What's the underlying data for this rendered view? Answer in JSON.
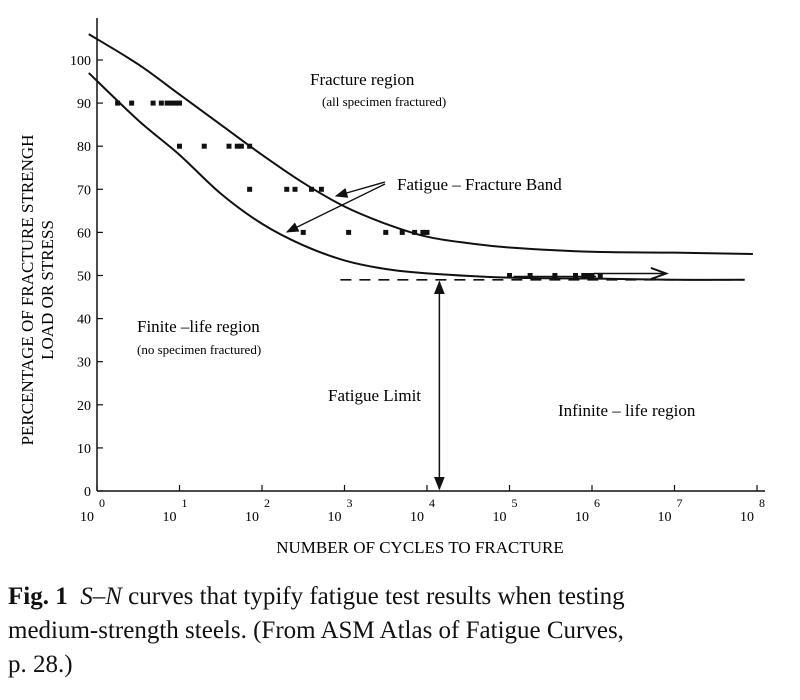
{
  "chart_data": {
    "type": "scatter",
    "xscale": "log",
    "xlim": [
      0,
      8
    ],
    "ylim": [
      0,
      100
    ],
    "xlabel": "NUMBER OF CYCLES TO FRACTURE",
    "ylabel_line1": "PERCENTAGE OF FRACTURE STRENGH",
    "ylabel_line2": "LOAD OR STRESS",
    "x_ticks": [
      {
        "base": "10",
        "exp": "0"
      },
      {
        "base": "10",
        "exp": "1"
      },
      {
        "base": "10",
        "exp": "2"
      },
      {
        "base": "10",
        "exp": "3"
      },
      {
        "base": "10",
        "exp": "4"
      },
      {
        "base": "10",
        "exp": "5"
      },
      {
        "base": "10",
        "exp": "6"
      },
      {
        "base": "10",
        "exp": "7"
      },
      {
        "base": "10",
        "exp": "8"
      }
    ],
    "y_ticks": [
      "0",
      "10",
      "20",
      "30",
      "40",
      "50",
      "60",
      "70",
      "80",
      "90",
      "100"
    ],
    "points": [
      [
        0.25,
        90
      ],
      [
        0.42,
        90
      ],
      [
        0.68,
        90
      ],
      [
        0.78,
        90
      ],
      [
        0.85,
        90
      ],
      [
        0.9,
        90
      ],
      [
        0.95,
        90
      ],
      [
        1.0,
        90
      ],
      [
        1.0,
        80
      ],
      [
        1.3,
        80
      ],
      [
        1.6,
        80
      ],
      [
        1.7,
        80
      ],
      [
        1.75,
        80
      ],
      [
        1.85,
        80
      ],
      [
        1.85,
        70
      ],
      [
        2.3,
        70
      ],
      [
        2.4,
        70
      ],
      [
        2.6,
        70
      ],
      [
        2.72,
        70
      ],
      [
        2.5,
        60
      ],
      [
        3.05,
        60
      ],
      [
        3.5,
        60
      ],
      [
        3.7,
        60
      ],
      [
        3.85,
        60
      ],
      [
        3.95,
        60
      ],
      [
        4.0,
        60
      ],
      [
        5.0,
        50
      ],
      [
        5.25,
        50
      ],
      [
        5.55,
        50
      ],
      [
        5.8,
        50
      ],
      [
        5.9,
        50
      ],
      [
        5.95,
        50
      ],
      [
        6.0,
        50
      ],
      [
        6.1,
        50
      ]
    ],
    "upper_curve": [
      [
        -0.1,
        106
      ],
      [
        0.5,
        99
      ],
      [
        1.0,
        92
      ],
      [
        1.5,
        85
      ],
      [
        2.0,
        78
      ],
      [
        2.5,
        71.5
      ],
      [
        3.0,
        66
      ],
      [
        3.5,
        62
      ],
      [
        4.0,
        59
      ],
      [
        4.5,
        57.5
      ],
      [
        5.0,
        56.5
      ],
      [
        6.0,
        55.5
      ],
      [
        7.0,
        55.3
      ],
      [
        7.95,
        55
      ]
    ],
    "lower_curve": [
      [
        -0.1,
        97
      ],
      [
        0.5,
        86
      ],
      [
        1.0,
        78
      ],
      [
        1.5,
        69
      ],
      [
        2.0,
        62
      ],
      [
        2.5,
        57
      ],
      [
        3.0,
        53.5
      ],
      [
        3.5,
        51.5
      ],
      [
        4.0,
        50.5
      ],
      [
        5.0,
        49.5
      ],
      [
        6.0,
        49.3
      ],
      [
        7.0,
        49
      ],
      [
        7.85,
        49
      ]
    ],
    "fatigue_limit": 49,
    "fatigue_limit_x": 4.15,
    "annotations": {
      "fracture_region": "Fracture region",
      "fracture_region_note": "(all specimen fractured)",
      "fatigue_band": "Fatigue – Fracture Band",
      "finite_region": "Finite –life region",
      "finite_region_note": "(no specimen fractured)",
      "fatigue_limit": "Fatigue Limit",
      "infinite_region": "Infinite – life region"
    }
  },
  "caption": {
    "label": "Fig. 1",
    "sn": "S–N",
    "text_line1": " curves that typify fatigue test results when testing",
    "text_line2": "medium-strength steels. (From ASM Atlas of Fatigue Curves,",
    "text_line3": "p. 28.)"
  }
}
